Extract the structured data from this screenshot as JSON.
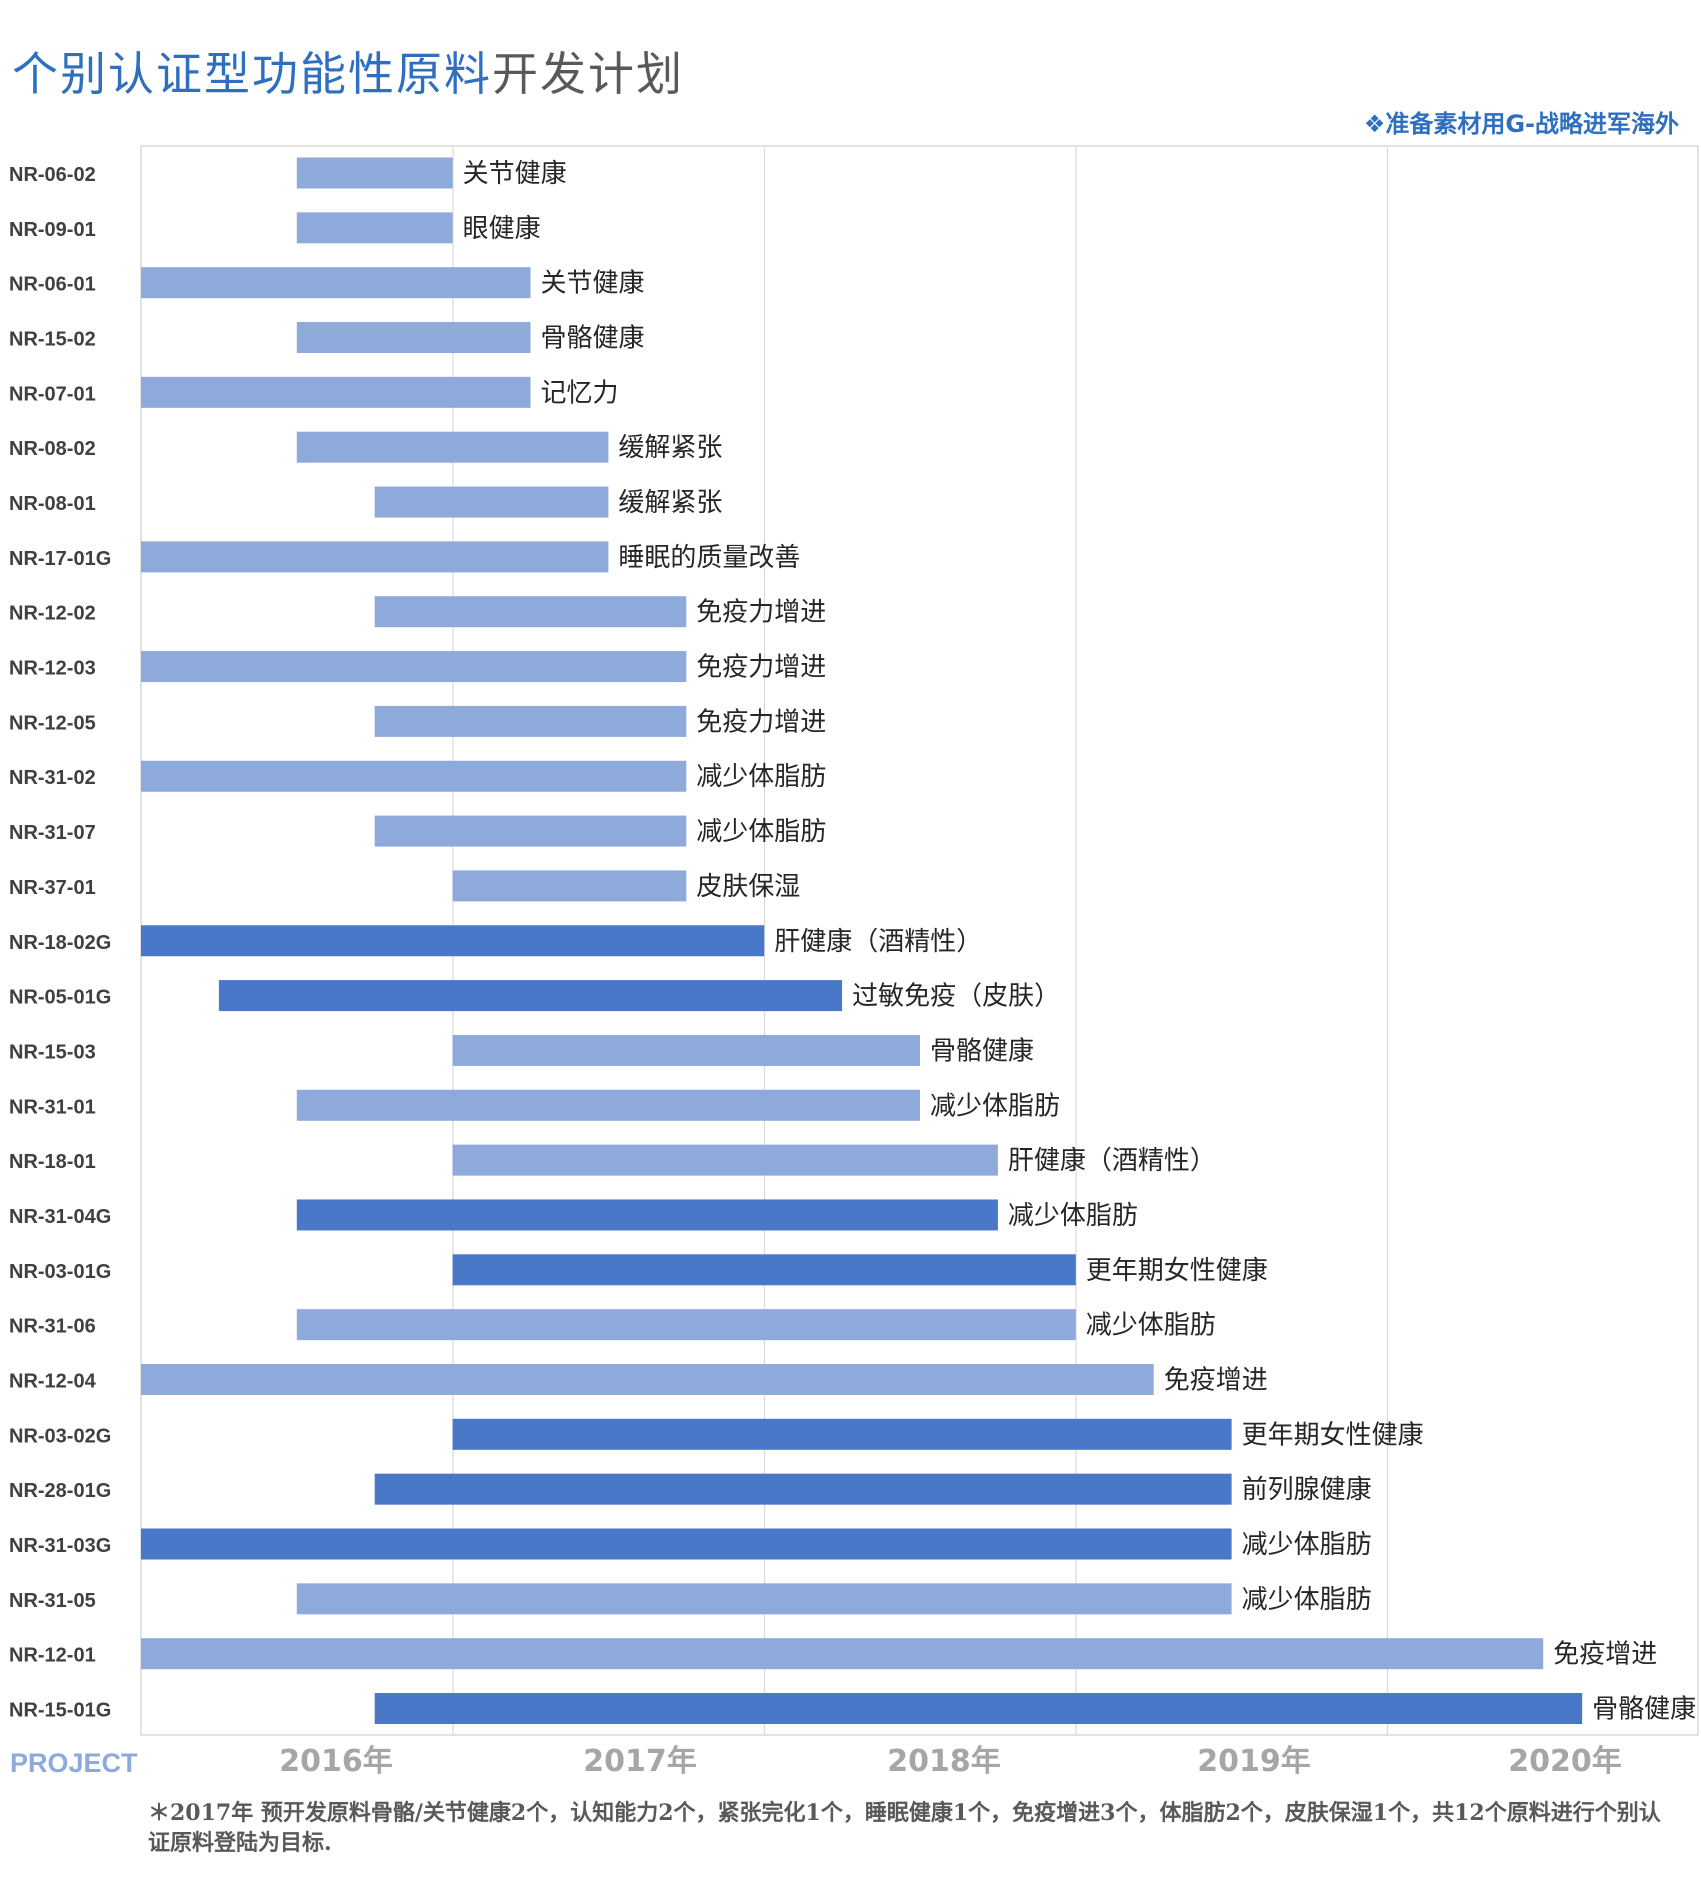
{
  "title_blue": "个别认证型功能性原料",
  "title_dark": "开发计划",
  "subtitle": "❖准备素材用G-战略进军海外",
  "footnote": "＊2017年 预开发原料骨骼/关节健康2个，认知能力2个，紧张完化1个，睡眠健康1个，免疫增进3个，体脂肪2个，皮肤保湿1个，共12个原料进行个别认证原料登陆为目标.",
  "colors": {
    "light": "#8eaadb",
    "dark": "#4a78c8",
    "project": "#8eaadb",
    "year": "#a6a6a6",
    "grid": "#d9d9d9"
  },
  "chart_data": {
    "type": "bar",
    "orientation": "horizontal-gantt",
    "x_axis_label": "PROJECT",
    "x_ticks": [
      "2016年",
      "2017年",
      "2018年",
      "2019年",
      "2020年"
    ],
    "x_unit": "quarter index, 0 = start of 2015 Q4",
    "xlim": [
      0,
      20
    ],
    "rows": [
      {
        "id": "NR-06-02",
        "start": 2,
        "end": 4,
        "label": "关节健康",
        "dark": false
      },
      {
        "id": "NR-09-01",
        "start": 2,
        "end": 4,
        "label": "眼健康",
        "dark": false
      },
      {
        "id": "NR-06-01",
        "start": 0,
        "end": 5,
        "label": "关节健康",
        "dark": false
      },
      {
        "id": "NR-15-02",
        "start": 2,
        "end": 5,
        "label": "骨骼健康",
        "dark": false
      },
      {
        "id": "NR-07-01",
        "start": 0,
        "end": 5,
        "label": "记忆力",
        "dark": false
      },
      {
        "id": "NR-08-02",
        "start": 2,
        "end": 6,
        "label": "缓解紧张",
        "dark": false
      },
      {
        "id": "NR-08-01",
        "start": 3,
        "end": 6,
        "label": "缓解紧张",
        "dark": false
      },
      {
        "id": "NR-17-01G",
        "start": 0,
        "end": 6,
        "label": "睡眠的质量改善",
        "dark": false
      },
      {
        "id": "NR-12-02",
        "start": 3,
        "end": 7,
        "label": "免疫力增进",
        "dark": false
      },
      {
        "id": "NR-12-03",
        "start": 0,
        "end": 7,
        "label": "免疫力增进",
        "dark": false
      },
      {
        "id": "NR-12-05",
        "start": 3,
        "end": 7,
        "label": "免疫力增进",
        "dark": false
      },
      {
        "id": "NR-31-02",
        "start": 0,
        "end": 7,
        "label": "减少体脂肪",
        "dark": false
      },
      {
        "id": "NR-31-07",
        "start": 3,
        "end": 7,
        "label": "减少体脂肪",
        "dark": false
      },
      {
        "id": "NR-37-01",
        "start": 4,
        "end": 7,
        "label": "皮肤保湿",
        "dark": false
      },
      {
        "id": "NR-18-02G",
        "start": 0,
        "end": 8,
        "label": "肝健康（酒精性）",
        "dark": true
      },
      {
        "id": "NR-05-01G",
        "start": 1,
        "end": 9,
        "label": "过敏免疫（皮肤）",
        "dark": true
      },
      {
        "id": "NR-15-03",
        "start": 4,
        "end": 10,
        "label": "骨骼健康",
        "dark": false
      },
      {
        "id": "NR-31-01",
        "start": 2,
        "end": 10,
        "label": "减少体脂肪",
        "dark": false
      },
      {
        "id": "NR-18-01",
        "start": 4,
        "end": 11,
        "label": "肝健康（酒精性）",
        "dark": false
      },
      {
        "id": "NR-31-04G",
        "start": 2,
        "end": 11,
        "label": "减少体脂肪",
        "dark": true
      },
      {
        "id": "NR-03-01G",
        "start": 4,
        "end": 12,
        "label": "更年期女性健康",
        "dark": true
      },
      {
        "id": "NR-31-06",
        "start": 2,
        "end": 12,
        "label": "减少体脂肪",
        "dark": false
      },
      {
        "id": "NR-12-04",
        "start": 0,
        "end": 13,
        "label": "免疫增进",
        "dark": false
      },
      {
        "id": "NR-03-02G",
        "start": 4,
        "end": 14,
        "label": "更年期女性健康",
        "dark": true
      },
      {
        "id": "NR-28-01G",
        "start": 3,
        "end": 14,
        "label": "前列腺健康",
        "dark": true
      },
      {
        "id": "NR-31-03G",
        "start": 0,
        "end": 14,
        "label": "减少体脂肪",
        "dark": true
      },
      {
        "id": "NR-31-05",
        "start": 2,
        "end": 14,
        "label": "减少体脂肪",
        "dark": false
      },
      {
        "id": "NR-12-01",
        "start": 0,
        "end": 18,
        "label": "免疫增进",
        "dark": false
      },
      {
        "id": "NR-15-01G",
        "start": 3,
        "end": 18.5,
        "label": "骨骼健康",
        "dark": true
      }
    ]
  }
}
